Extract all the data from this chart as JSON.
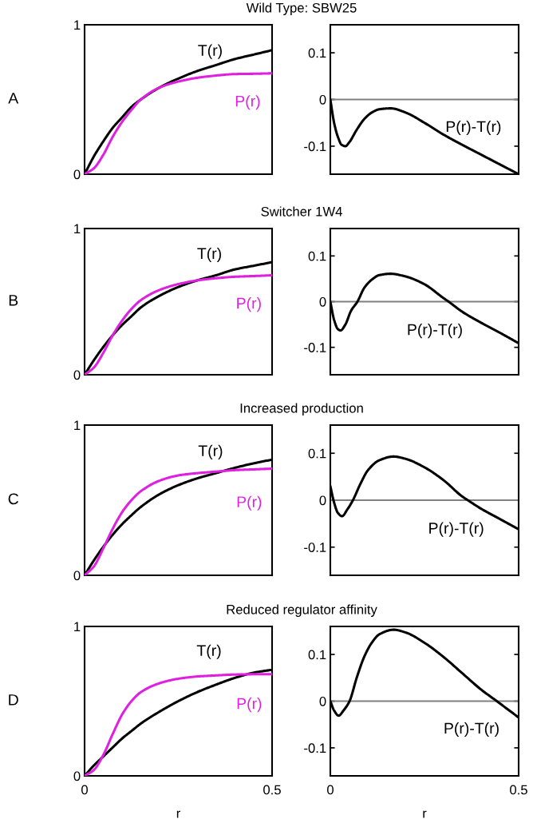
{
  "chart_data": [
    {
      "type": "line",
      "title": "Wild Type: SBW25",
      "annotations": [
        "A"
      ],
      "x": [
        0,
        0.025,
        0.05,
        0.075,
        0.1,
        0.125,
        0.15,
        0.2,
        0.25,
        0.3,
        0.35,
        0.4,
        0.45,
        0.5
      ],
      "series": [
        {
          "name": "T(r)",
          "color": "#000000",
          "values": [
            0,
            0.12,
            0.22,
            0.31,
            0.38,
            0.45,
            0.5,
            0.58,
            0.64,
            0.69,
            0.73,
            0.77,
            0.8,
            0.83
          ]
        },
        {
          "name": "P(r)",
          "color": "#e020e0",
          "values": [
            0,
            0.04,
            0.13,
            0.25,
            0.35,
            0.43,
            0.5,
            0.58,
            0.62,
            0.645,
            0.66,
            0.67,
            0.672,
            0.675
          ]
        }
      ],
      "xlim": [
        0,
        0.5
      ],
      "xticks": [
        0,
        0.5
      ],
      "ylim": [
        0,
        1
      ],
      "yticks": [
        0,
        1
      ],
      "tick_labels": "y",
      "grid": false
    },
    {
      "type": "line",
      "x": [
        0,
        0.01,
        0.02,
        0.03,
        0.04,
        0.05,
        0.07,
        0.09,
        0.11,
        0.13,
        0.16,
        0.2,
        0.25,
        0.3,
        0.35,
        0.4,
        0.45,
        0.5
      ],
      "series": [
        {
          "name": "P(r)-T(r)",
          "color": "#000000",
          "values": [
            0,
            -0.05,
            -0.08,
            -0.097,
            -0.1,
            -0.092,
            -0.065,
            -0.042,
            -0.028,
            -0.021,
            -0.019,
            -0.028,
            -0.05,
            -0.075,
            -0.097,
            -0.118,
            -0.139,
            -0.16
          ]
        }
      ],
      "ref_lines": [
        {
          "axis": "y",
          "value": 0,
          "color": "#808080"
        }
      ],
      "xlim": [
        0,
        0.5
      ],
      "xticks": [
        0,
        0.5
      ],
      "ylim": [
        -0.16,
        0.16
      ],
      "yticks": [
        -0.1,
        0,
        0.1
      ],
      "tick_labels": "y",
      "grid": false
    },
    {
      "type": "line",
      "title": "Switcher 1W4",
      "annotations": [
        "B"
      ],
      "x": [
        0,
        0.025,
        0.05,
        0.075,
        0.1,
        0.125,
        0.15,
        0.2,
        0.25,
        0.3,
        0.35,
        0.4,
        0.45,
        0.5
      ],
      "series": [
        {
          "name": "T(r)",
          "color": "#000000",
          "values": [
            0,
            0.1,
            0.19,
            0.27,
            0.34,
            0.4,
            0.46,
            0.54,
            0.6,
            0.645,
            0.68,
            0.72,
            0.745,
            0.77
          ]
        },
        {
          "name": "P(r)",
          "color": "#e020e0",
          "values": [
            0,
            0.05,
            0.15,
            0.27,
            0.37,
            0.45,
            0.51,
            0.58,
            0.62,
            0.645,
            0.66,
            0.67,
            0.675,
            0.68
          ]
        }
      ],
      "xlim": [
        0,
        0.5
      ],
      "xticks": [
        0,
        0.5
      ],
      "ylim": [
        0,
        1
      ],
      "yticks": [
        0,
        1
      ],
      "tick_labels": "y",
      "grid": false
    },
    {
      "type": "line",
      "x": [
        0,
        0.01,
        0.02,
        0.027,
        0.04,
        0.055,
        0.072,
        0.09,
        0.11,
        0.13,
        0.16,
        0.2,
        0.25,
        0.3,
        0.314,
        0.35,
        0.4,
        0.45,
        0.5
      ],
      "series": [
        {
          "name": "P(r)-T(r)",
          "color": "#000000",
          "values": [
            0,
            -0.04,
            -0.06,
            -0.063,
            -0.05,
            -0.02,
            0,
            0.03,
            0.048,
            0.058,
            0.061,
            0.055,
            0.038,
            0.008,
            0,
            -0.022,
            -0.046,
            -0.068,
            -0.091
          ]
        }
      ],
      "ref_lines": [
        {
          "axis": "y",
          "value": 0,
          "color": "#808080"
        }
      ],
      "xlim": [
        0,
        0.5
      ],
      "xticks": [
        0,
        0.5
      ],
      "ylim": [
        -0.16,
        0.16
      ],
      "yticks": [
        -0.1,
        0,
        0.1
      ],
      "tick_labels": "y",
      "grid": false
    },
    {
      "type": "line",
      "title": "Increased production",
      "annotations": [
        "C"
      ],
      "x": [
        0,
        0.025,
        0.05,
        0.075,
        0.1,
        0.125,
        0.15,
        0.2,
        0.25,
        0.3,
        0.35,
        0.4,
        0.45,
        0.5
      ],
      "series": [
        {
          "name": "T(r)",
          "color": "#000000",
          "values": [
            0,
            0.1,
            0.19,
            0.27,
            0.34,
            0.4,
            0.455,
            0.54,
            0.6,
            0.645,
            0.68,
            0.715,
            0.745,
            0.77
          ]
        },
        {
          "name": "P(r)",
          "color": "#e020e0",
          "values": [
            0,
            0.06,
            0.18,
            0.31,
            0.42,
            0.5,
            0.56,
            0.63,
            0.665,
            0.68,
            0.69,
            0.7,
            0.705,
            0.71
          ]
        }
      ],
      "xlim": [
        0,
        0.5
      ],
      "xticks": [
        0,
        0.5
      ],
      "ylim": [
        0,
        1
      ],
      "yticks": [
        0,
        1
      ],
      "tick_labels": "y",
      "grid": false
    },
    {
      "type": "line",
      "x": [
        0,
        0.01,
        0.02,
        0.031,
        0.045,
        0.06,
        0.08,
        0.1,
        0.13,
        0.168,
        0.2,
        0.25,
        0.3,
        0.35,
        0.365,
        0.4,
        0.45,
        0.5
      ],
      "series": [
        {
          "name": "P(r)-T(r)",
          "color": "#000000",
          "values": [
            0.03,
            -0.005,
            -0.027,
            -0.034,
            -0.02,
            0,
            0.035,
            0.064,
            0.085,
            0.093,
            0.088,
            0.07,
            0.043,
            0.008,
            0,
            -0.018,
            -0.04,
            -0.062
          ]
        }
      ],
      "ref_lines": [
        {
          "axis": "y",
          "value": 0,
          "color": "#808080"
        }
      ],
      "xlim": [
        0,
        0.5
      ],
      "xticks": [
        0,
        0.5
      ],
      "ylim": [
        -0.16,
        0.16
      ],
      "yticks": [
        -0.1,
        0,
        0.1
      ],
      "tick_labels": "y",
      "grid": false
    },
    {
      "type": "line",
      "title": "Reduced regulator affinity",
      "xlabel": "r",
      "annotations": [
        "D"
      ],
      "x": [
        0,
        0.025,
        0.05,
        0.075,
        0.1,
        0.125,
        0.15,
        0.2,
        0.25,
        0.3,
        0.35,
        0.4,
        0.45,
        0.5
      ],
      "series": [
        {
          "name": "T(r)",
          "color": "#000000",
          "values": [
            0,
            0.07,
            0.13,
            0.19,
            0.25,
            0.3,
            0.35,
            0.43,
            0.5,
            0.56,
            0.61,
            0.655,
            0.69,
            0.71
          ]
        },
        {
          "name": "P(r)",
          "color": "#e020e0",
          "values": [
            0,
            0.04,
            0.14,
            0.28,
            0.41,
            0.5,
            0.56,
            0.62,
            0.65,
            0.665,
            0.672,
            0.678,
            0.68,
            0.68
          ]
        }
      ],
      "xlim": [
        0,
        0.5
      ],
      "xticks": [
        0,
        0.5
      ],
      "ylim": [
        0,
        1
      ],
      "yticks": [
        0,
        1
      ],
      "grid": false
    },
    {
      "type": "line",
      "xlabel": "r",
      "x": [
        0,
        0.01,
        0.022,
        0.035,
        0.051,
        0.07,
        0.09,
        0.11,
        0.13,
        0.168,
        0.2,
        0.25,
        0.3,
        0.35,
        0.4,
        0.442,
        0.5
      ],
      "series": [
        {
          "name": "P(r)-T(r)",
          "color": "#000000",
          "values": [
            0,
            -0.02,
            -0.031,
            -0.02,
            0,
            0.05,
            0.095,
            0.125,
            0.143,
            0.153,
            0.147,
            0.125,
            0.095,
            0.06,
            0.025,
            0,
            -0.035
          ]
        }
      ],
      "ref_lines": [
        {
          "axis": "y",
          "value": 0,
          "color": "#808080"
        }
      ],
      "xlim": [
        0,
        0.5
      ],
      "xticks": [
        0,
        0.5
      ],
      "ylim": [
        -0.16,
        0.16
      ],
      "yticks": [
        -0.1,
        0,
        0.1
      ],
      "grid": false
    }
  ]
}
